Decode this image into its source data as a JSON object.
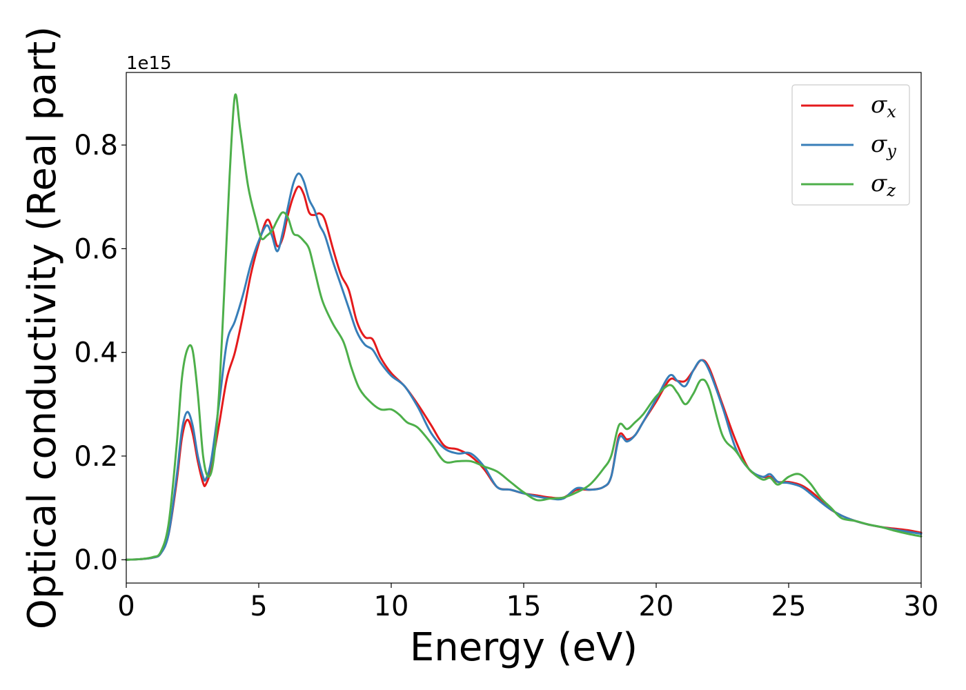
{
  "chart_data": {
    "type": "line",
    "xlabel": "Energy (eV)",
    "ylabel": "Optical conductivity (Real part)",
    "y_offset_label": "1e15",
    "xlim": [
      0,
      30
    ],
    "ylim": [
      -0.045,
      0.94
    ],
    "x_ticks": [
      0,
      5,
      10,
      15,
      20,
      25,
      30
    ],
    "y_ticks": [
      0.0,
      0.2,
      0.4,
      0.6,
      0.8
    ],
    "x_tick_labels": [
      "0",
      "5",
      "10",
      "15",
      "20",
      "25",
      "30"
    ],
    "y_tick_labels": [
      "0.0",
      "0.2",
      "0.4",
      "0.6",
      "0.8"
    ],
    "grid": false,
    "legend_position": "top-right",
    "series": [
      {
        "name": "σx",
        "symbol": "σ",
        "subscript": "x",
        "color": "#e41a1c",
        "points": [
          [
            0,
            0
          ],
          [
            0.5,
            0.001
          ],
          [
            1.0,
            0.004
          ],
          [
            1.3,
            0.012
          ],
          [
            1.6,
            0.05
          ],
          [
            1.9,
            0.15
          ],
          [
            2.1,
            0.235
          ],
          [
            2.3,
            0.27
          ],
          [
            2.5,
            0.245
          ],
          [
            2.7,
            0.19
          ],
          [
            2.9,
            0.148
          ],
          [
            3.0,
            0.145
          ],
          [
            3.2,
            0.175
          ],
          [
            3.5,
            0.26
          ],
          [
            3.8,
            0.35
          ],
          [
            4.1,
            0.4
          ],
          [
            4.4,
            0.47
          ],
          [
            4.7,
            0.55
          ],
          [
            5.0,
            0.61
          ],
          [
            5.3,
            0.655
          ],
          [
            5.5,
            0.64
          ],
          [
            5.7,
            0.605
          ],
          [
            5.9,
            0.62
          ],
          [
            6.1,
            0.665
          ],
          [
            6.3,
            0.7
          ],
          [
            6.5,
            0.72
          ],
          [
            6.7,
            0.705
          ],
          [
            6.9,
            0.67
          ],
          [
            7.1,
            0.665
          ],
          [
            7.3,
            0.668
          ],
          [
            7.5,
            0.655
          ],
          [
            7.8,
            0.6
          ],
          [
            8.1,
            0.55
          ],
          [
            8.4,
            0.52
          ],
          [
            8.7,
            0.46
          ],
          [
            9.0,
            0.43
          ],
          [
            9.3,
            0.425
          ],
          [
            9.6,
            0.39
          ],
          [
            10.0,
            0.36
          ],
          [
            10.5,
            0.335
          ],
          [
            11.0,
            0.3
          ],
          [
            11.5,
            0.26
          ],
          [
            12.0,
            0.22
          ],
          [
            12.5,
            0.213
          ],
          [
            13.0,
            0.2
          ],
          [
            13.5,
            0.175
          ],
          [
            14.0,
            0.14
          ],
          [
            14.5,
            0.135
          ],
          [
            15.0,
            0.128
          ],
          [
            15.5,
            0.124
          ],
          [
            16.0,
            0.12
          ],
          [
            16.5,
            0.12
          ],
          [
            17.0,
            0.135
          ],
          [
            17.5,
            0.135
          ],
          [
            18.0,
            0.14
          ],
          [
            18.3,
            0.16
          ],
          [
            18.6,
            0.24
          ],
          [
            18.9,
            0.232
          ],
          [
            19.2,
            0.24
          ],
          [
            19.5,
            0.265
          ],
          [
            20.0,
            0.305
          ],
          [
            20.5,
            0.347
          ],
          [
            20.8,
            0.345
          ],
          [
            21.1,
            0.345
          ],
          [
            21.4,
            0.365
          ],
          [
            21.7,
            0.385
          ],
          [
            22.0,
            0.37
          ],
          [
            22.5,
            0.3
          ],
          [
            23.0,
            0.23
          ],
          [
            23.5,
            0.175
          ],
          [
            24.0,
            0.16
          ],
          [
            24.3,
            0.16
          ],
          [
            24.6,
            0.15
          ],
          [
            25.0,
            0.15
          ],
          [
            25.5,
            0.143
          ],
          [
            26.0,
            0.125
          ],
          [
            26.5,
            0.1
          ],
          [
            27.0,
            0.085
          ],
          [
            27.5,
            0.075
          ],
          [
            28.0,
            0.068
          ],
          [
            28.5,
            0.063
          ],
          [
            29.0,
            0.06
          ],
          [
            29.5,
            0.057
          ],
          [
            30.0,
            0.052
          ]
        ]
      },
      {
        "name": "σy",
        "symbol": "σ",
        "subscript": "y",
        "color": "#377eb8",
        "points": [
          [
            0,
            0
          ],
          [
            0.5,
            0.001
          ],
          [
            1.0,
            0.004
          ],
          [
            1.3,
            0.012
          ],
          [
            1.6,
            0.05
          ],
          [
            1.9,
            0.16
          ],
          [
            2.1,
            0.25
          ],
          [
            2.3,
            0.285
          ],
          [
            2.5,
            0.26
          ],
          [
            2.7,
            0.2
          ],
          [
            2.9,
            0.16
          ],
          [
            3.0,
            0.155
          ],
          [
            3.2,
            0.19
          ],
          [
            3.5,
            0.3
          ],
          [
            3.8,
            0.42
          ],
          [
            4.1,
            0.46
          ],
          [
            4.4,
            0.51
          ],
          [
            4.7,
            0.57
          ],
          [
            5.0,
            0.615
          ],
          [
            5.3,
            0.645
          ],
          [
            5.5,
            0.625
          ],
          [
            5.7,
            0.595
          ],
          [
            5.9,
            0.63
          ],
          [
            6.1,
            0.68
          ],
          [
            6.3,
            0.725
          ],
          [
            6.5,
            0.745
          ],
          [
            6.7,
            0.73
          ],
          [
            6.9,
            0.695
          ],
          [
            7.1,
            0.675
          ],
          [
            7.3,
            0.645
          ],
          [
            7.5,
            0.625
          ],
          [
            7.8,
            0.575
          ],
          [
            8.1,
            0.53
          ],
          [
            8.4,
            0.485
          ],
          [
            8.7,
            0.44
          ],
          [
            9.0,
            0.415
          ],
          [
            9.3,
            0.405
          ],
          [
            9.6,
            0.38
          ],
          [
            10.0,
            0.355
          ],
          [
            10.5,
            0.335
          ],
          [
            11.0,
            0.295
          ],
          [
            11.5,
            0.245
          ],
          [
            12.0,
            0.215
          ],
          [
            12.5,
            0.205
          ],
          [
            13.0,
            0.205
          ],
          [
            13.5,
            0.18
          ],
          [
            14.0,
            0.14
          ],
          [
            14.5,
            0.135
          ],
          [
            15.0,
            0.128
          ],
          [
            15.5,
            0.122
          ],
          [
            16.0,
            0.118
          ],
          [
            16.5,
            0.118
          ],
          [
            17.0,
            0.138
          ],
          [
            17.5,
            0.135
          ],
          [
            18.0,
            0.14
          ],
          [
            18.3,
            0.16
          ],
          [
            18.6,
            0.235
          ],
          [
            18.9,
            0.228
          ],
          [
            19.2,
            0.24
          ],
          [
            19.5,
            0.265
          ],
          [
            20.0,
            0.31
          ],
          [
            20.5,
            0.355
          ],
          [
            20.8,
            0.345
          ],
          [
            21.1,
            0.335
          ],
          [
            21.4,
            0.365
          ],
          [
            21.7,
            0.385
          ],
          [
            22.0,
            0.365
          ],
          [
            22.5,
            0.295
          ],
          [
            23.0,
            0.215
          ],
          [
            23.5,
            0.175
          ],
          [
            24.0,
            0.16
          ],
          [
            24.3,
            0.165
          ],
          [
            24.6,
            0.15
          ],
          [
            25.0,
            0.148
          ],
          [
            25.5,
            0.14
          ],
          [
            26.0,
            0.12
          ],
          [
            26.5,
            0.1
          ],
          [
            27.0,
            0.085
          ],
          [
            27.5,
            0.075
          ],
          [
            28.0,
            0.068
          ],
          [
            28.5,
            0.063
          ],
          [
            29.0,
            0.058
          ],
          [
            29.5,
            0.054
          ],
          [
            30.0,
            0.05
          ]
        ]
      },
      {
        "name": "σz",
        "symbol": "σ",
        "subscript": "z",
        "color": "#4daf4a",
        "points": [
          [
            0,
            0
          ],
          [
            0.5,
            0.001
          ],
          [
            1.0,
            0.005
          ],
          [
            1.3,
            0.015
          ],
          [
            1.6,
            0.07
          ],
          [
            1.9,
            0.22
          ],
          [
            2.1,
            0.35
          ],
          [
            2.3,
            0.405
          ],
          [
            2.5,
            0.405
          ],
          [
            2.7,
            0.32
          ],
          [
            2.9,
            0.2
          ],
          [
            3.1,
            0.16
          ],
          [
            3.3,
            0.195
          ],
          [
            3.5,
            0.32
          ],
          [
            3.7,
            0.52
          ],
          [
            3.9,
            0.74
          ],
          [
            4.1,
            0.895
          ],
          [
            4.3,
            0.83
          ],
          [
            4.6,
            0.72
          ],
          [
            4.9,
            0.655
          ],
          [
            5.1,
            0.62
          ],
          [
            5.3,
            0.625
          ],
          [
            5.5,
            0.635
          ],
          [
            5.7,
            0.655
          ],
          [
            5.9,
            0.67
          ],
          [
            6.1,
            0.66
          ],
          [
            6.3,
            0.63
          ],
          [
            6.5,
            0.625
          ],
          [
            6.7,
            0.615
          ],
          [
            6.9,
            0.6
          ],
          [
            7.1,
            0.56
          ],
          [
            7.4,
            0.5
          ],
          [
            7.8,
            0.455
          ],
          [
            8.2,
            0.42
          ],
          [
            8.5,
            0.37
          ],
          [
            8.8,
            0.33
          ],
          [
            9.2,
            0.305
          ],
          [
            9.6,
            0.29
          ],
          [
            10.0,
            0.29
          ],
          [
            10.3,
            0.28
          ],
          [
            10.6,
            0.265
          ],
          [
            11.0,
            0.255
          ],
          [
            11.5,
            0.225
          ],
          [
            12.0,
            0.19
          ],
          [
            12.5,
            0.19
          ],
          [
            13.0,
            0.19
          ],
          [
            13.5,
            0.18
          ],
          [
            14.0,
            0.17
          ],
          [
            14.5,
            0.15
          ],
          [
            15.0,
            0.13
          ],
          [
            15.5,
            0.115
          ],
          [
            16.0,
            0.118
          ],
          [
            16.5,
            0.12
          ],
          [
            17.0,
            0.13
          ],
          [
            17.5,
            0.145
          ],
          [
            18.0,
            0.175
          ],
          [
            18.3,
            0.2
          ],
          [
            18.6,
            0.26
          ],
          [
            18.9,
            0.252
          ],
          [
            19.2,
            0.265
          ],
          [
            19.5,
            0.28
          ],
          [
            20.0,
            0.315
          ],
          [
            20.5,
            0.337
          ],
          [
            20.8,
            0.322
          ],
          [
            21.1,
            0.3
          ],
          [
            21.4,
            0.32
          ],
          [
            21.7,
            0.347
          ],
          [
            22.0,
            0.33
          ],
          [
            22.5,
            0.24
          ],
          [
            23.0,
            0.21
          ],
          [
            23.5,
            0.175
          ],
          [
            24.0,
            0.155
          ],
          [
            24.3,
            0.158
          ],
          [
            24.6,
            0.145
          ],
          [
            25.0,
            0.16
          ],
          [
            25.4,
            0.165
          ],
          [
            25.8,
            0.148
          ],
          [
            26.2,
            0.12
          ],
          [
            26.6,
            0.1
          ],
          [
            27.0,
            0.08
          ],
          [
            27.5,
            0.075
          ],
          [
            28.0,
            0.068
          ],
          [
            28.5,
            0.063
          ],
          [
            29.0,
            0.056
          ],
          [
            29.5,
            0.05
          ],
          [
            30.0,
            0.045
          ]
        ]
      }
    ]
  }
}
